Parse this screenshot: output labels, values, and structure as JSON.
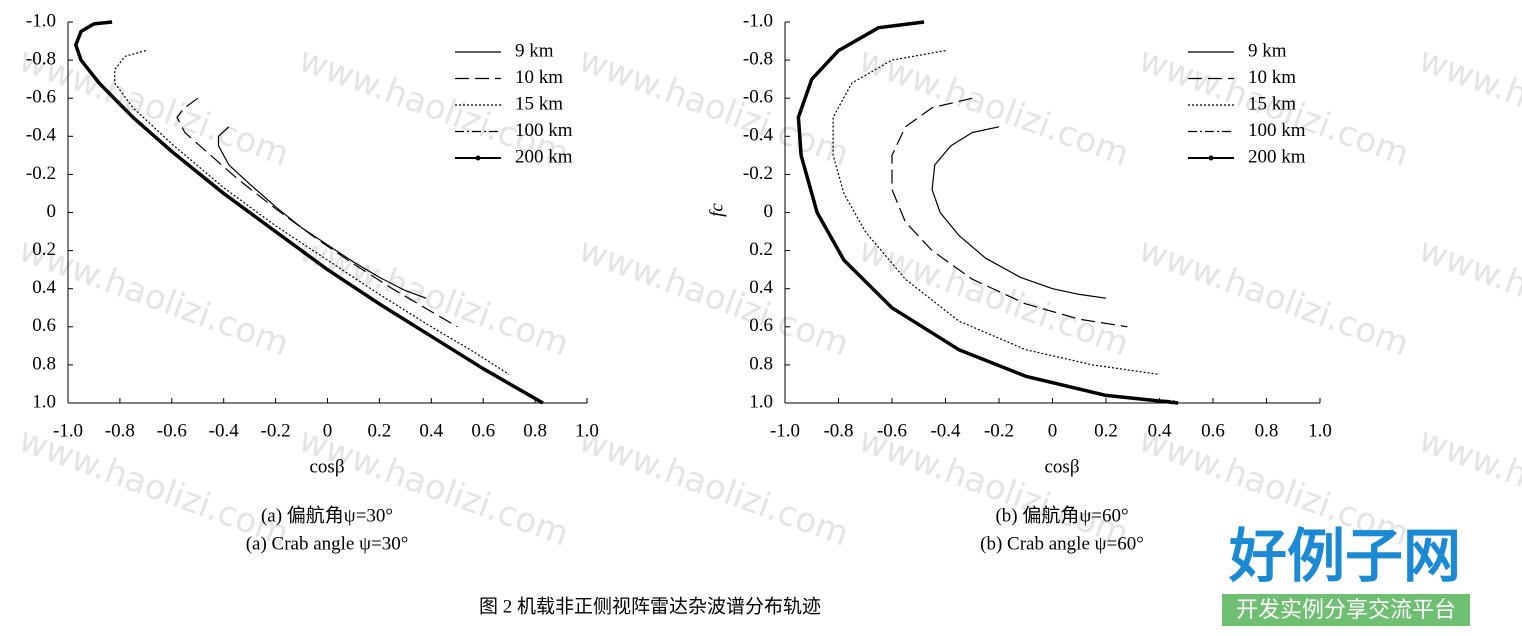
{
  "chart_data": [
    {
      "type": "line",
      "x_label": "cosβ",
      "captions": [
        "(a) 偏航角ψ=30°",
        "(a) Crab angle ψ=30°"
      ],
      "xlim": [
        -1.0,
        1.0
      ],
      "ylim": [
        -1.0,
        1.0
      ],
      "y_inverted": true,
      "legend": "upper right",
      "xticks": [
        {
          "value": -1.0,
          "label": "-1.0"
        },
        -0.8,
        -0.6,
        -0.4,
        -0.2,
        0,
        0.2,
        0.4,
        0.6,
        0.8,
        {
          "value": 1.0,
          "label": "1.0"
        }
      ],
      "yticks": [
        {
          "value": -1.0,
          "label": "-1.0"
        },
        -0.8,
        -0.6,
        -0.4,
        -0.2,
        0,
        0.2,
        0.4,
        0.6,
        0.8,
        {
          "value": 1.0,
          "label": "1.0"
        }
      ],
      "series": [
        {
          "name": "9 km",
          "color": "#000000",
          "line_style": "solid",
          "x": [
            -0.38,
            -0.42,
            -0.42,
            -0.38,
            -0.3,
            -0.2,
            -0.1,
            0,
            0.1,
            0.2,
            0.3,
            0.38
          ],
          "values": [
            -0.45,
            -0.4,
            -0.35,
            -0.25,
            -0.15,
            -0.03,
            0.08,
            0.17,
            0.26,
            0.34,
            0.41,
            0.45
          ]
        },
        {
          "name": "10 km",
          "color": "#000000",
          "line_style": "dashed",
          "x": [
            -0.5,
            -0.55,
            -0.58,
            -0.55,
            -0.45,
            -0.35,
            -0.2,
            -0.05,
            0.1,
            0.25,
            0.4,
            0.5
          ],
          "values": [
            -0.6,
            -0.55,
            -0.5,
            -0.42,
            -0.3,
            -0.18,
            -0.02,
            0.13,
            0.27,
            0.4,
            0.52,
            0.6
          ]
        },
        {
          "name": "15 km",
          "color": "#000000",
          "line_style": "dotted",
          "x": [
            -0.7,
            -0.78,
            -0.82,
            -0.82,
            -0.75,
            -0.6,
            -0.4,
            -0.2,
            0,
            0.2,
            0.4,
            0.55,
            0.7
          ],
          "values": [
            -0.85,
            -0.82,
            -0.75,
            -0.68,
            -0.55,
            -0.36,
            -0.13,
            0.07,
            0.25,
            0.43,
            0.6,
            0.72,
            0.85
          ]
        },
        {
          "name": "100 km",
          "color": "#000000",
          "line_style": "dashdot",
          "x": [
            -0.83,
            -0.9,
            -0.95,
            -0.97,
            -0.95,
            -0.88,
            -0.75,
            -0.6,
            -0.4,
            -0.2,
            0,
            0.2,
            0.4,
            0.6,
            0.82
          ],
          "values": [
            -1.0,
            -0.99,
            -0.95,
            -0.88,
            -0.8,
            -0.68,
            -0.5,
            -0.32,
            -0.1,
            0.1,
            0.3,
            0.48,
            0.65,
            0.82,
            0.99
          ]
        },
        {
          "name": "200 km",
          "color": "#000000",
          "line_style": "marker",
          "x": [
            -0.83,
            -0.9,
            -0.95,
            -0.97,
            -0.95,
            -0.88,
            -0.75,
            -0.6,
            -0.4,
            -0.2,
            0,
            0.2,
            0.4,
            0.6,
            0.83
          ],
          "values": [
            -1.0,
            -0.99,
            -0.95,
            -0.88,
            -0.8,
            -0.68,
            -0.5,
            -0.32,
            -0.1,
            0.1,
            0.3,
            0.48,
            0.65,
            0.82,
            1.0
          ]
        }
      ]
    },
    {
      "type": "line",
      "x_label": "cosβ",
      "y_label": "fc",
      "captions": [
        "(b) 偏航角ψ=60°",
        "(b) Crab angle ψ=60°"
      ],
      "xlim": [
        -1.0,
        1.0
      ],
      "ylim": [
        -1.0,
        1.0
      ],
      "y_inverted": true,
      "legend": "upper right",
      "xticks": [
        {
          "value": -1.0,
          "label": "-1.0"
        },
        -0.8,
        -0.6,
        -0.4,
        -0.2,
        0,
        0.2,
        0.4,
        0.6,
        0.8,
        {
          "value": 1.0,
          "label": "1.0"
        }
      ],
      "yticks": [
        {
          "value": -1.0,
          "label": "-1.0"
        },
        -0.8,
        -0.6,
        -0.4,
        -0.2,
        0,
        0.2,
        0.4,
        0.6,
        0.8,
        {
          "value": 1.0,
          "label": "1.0"
        }
      ],
      "series": [
        {
          "name": "9 km",
          "color": "#000000",
          "line_style": "solid",
          "x": [
            -0.2,
            -0.3,
            -0.38,
            -0.44,
            -0.45,
            -0.42,
            -0.35,
            -0.25,
            -0.12,
            0,
            0.1,
            0.2
          ],
          "values": [
            -0.45,
            -0.42,
            -0.35,
            -0.25,
            -0.12,
            0,
            0.12,
            0.24,
            0.34,
            0.4,
            0.43,
            0.45
          ]
        },
        {
          "name": "10 km",
          "color": "#000000",
          "line_style": "dashed",
          "x": [
            -0.3,
            -0.45,
            -0.55,
            -0.6,
            -0.6,
            -0.55,
            -0.45,
            -0.3,
            -0.1,
            0.1,
            0.28
          ],
          "values": [
            -0.6,
            -0.55,
            -0.45,
            -0.3,
            -0.12,
            0.05,
            0.2,
            0.35,
            0.48,
            0.56,
            0.6
          ]
        },
        {
          "name": "15 km",
          "color": "#000000",
          "line_style": "dotted",
          "x": [
            -0.4,
            -0.6,
            -0.75,
            -0.82,
            -0.82,
            -0.78,
            -0.7,
            -0.55,
            -0.35,
            -0.1,
            0.15,
            0.4
          ],
          "values": [
            -0.85,
            -0.8,
            -0.68,
            -0.5,
            -0.3,
            -0.1,
            0.1,
            0.35,
            0.57,
            0.72,
            0.8,
            0.85
          ]
        },
        {
          "name": "100 km",
          "color": "#000000",
          "line_style": "dashdot",
          "x": [
            -0.48,
            -0.65,
            -0.8,
            -0.9,
            -0.95,
            -0.94,
            -0.88,
            -0.78,
            -0.6,
            -0.35,
            -0.1,
            0.2,
            0.46
          ],
          "values": [
            -1.0,
            -0.97,
            -0.85,
            -0.7,
            -0.5,
            -0.3,
            0,
            0.25,
            0.5,
            0.72,
            0.86,
            0.96,
            0.99
          ]
        },
        {
          "name": "200 km",
          "color": "#000000",
          "line_style": "marker",
          "x": [
            -0.48,
            -0.65,
            -0.8,
            -0.9,
            -0.95,
            -0.94,
            -0.88,
            -0.78,
            -0.6,
            -0.35,
            -0.1,
            0.2,
            0.47
          ],
          "values": [
            -1.0,
            -0.97,
            -0.85,
            -0.7,
            -0.5,
            -0.3,
            0,
            0.25,
            0.5,
            0.72,
            0.86,
            0.96,
            1.0
          ]
        }
      ]
    }
  ],
  "figure_caption": "图 2  机载非正侧视阵雷达杂波谱分布轨迹",
  "watermark": "www.haolizi.com",
  "logo": {
    "title": "好例子网",
    "subtitle": "开发实例分享交流平台"
  }
}
